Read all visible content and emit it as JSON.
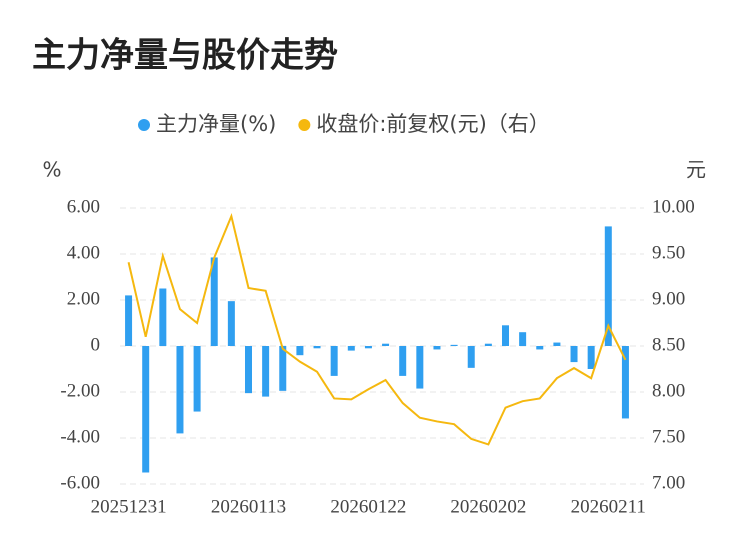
{
  "chart_data": {
    "type": "bar_line",
    "title": "主力净量与股价走势",
    "y_label": "%",
    "y2_label": "元",
    "categories": [
      "20251231",
      null,
      null,
      null,
      null,
      null,
      null,
      "20260113",
      null,
      null,
      null,
      null,
      null,
      null,
      "20260122",
      null,
      null,
      null,
      null,
      null,
      null,
      "20260202",
      null,
      null,
      null,
      null,
      null,
      null,
      "20260211",
      null
    ],
    "series": [
      {
        "name": "主力净量(%)",
        "type": "bar",
        "color": "#2f9ff0",
        "values": [
          2.2,
          -5.5,
          2.5,
          -3.8,
          -2.85,
          3.85,
          1.95,
          -2.05,
          -2.2,
          -1.95,
          -0.4,
          -0.1,
          -1.3,
          -0.2,
          -0.1,
          0.1,
          -1.3,
          -1.85,
          -0.15,
          0.05,
          -0.95,
          0.1,
          0.9,
          0.6,
          -0.15,
          0.15,
          -0.7,
          -1.0,
          5.2,
          -3.15
        ]
      },
      {
        "name": "收盘价:前复权(元)（右）",
        "type": "line",
        "axis": "y2",
        "color": "#f5b80f",
        "values": [
          9.41,
          8.6,
          9.48,
          8.9,
          8.75,
          9.46,
          9.91,
          9.13,
          9.1,
          8.47,
          8.33,
          8.22,
          7.93,
          7.92,
          8.03,
          8.13,
          7.88,
          7.72,
          7.68,
          7.65,
          7.49,
          7.43,
          7.83,
          7.9,
          7.93,
          8.15,
          8.26,
          8.15,
          8.72,
          8.35
        ]
      }
    ],
    "ylim": [
      -6,
      6
    ],
    "yticks": [
      {
        "value": -6,
        "label": "-6.00"
      },
      {
        "value": -4,
        "label": "-4.00"
      },
      {
        "value": -2,
        "label": "-2.00"
      },
      0,
      {
        "value": 2,
        "label": "2.00"
      },
      {
        "value": 4,
        "label": "4.00"
      },
      {
        "value": 6,
        "label": "6.00"
      }
    ],
    "y2lim": [
      7,
      10
    ],
    "y2ticks": [
      {
        "value": 7,
        "label": "7.00"
      },
      {
        "value": 7.5,
        "label": "7.50"
      },
      {
        "value": 8,
        "label": "8.00"
      },
      {
        "value": 8.5,
        "label": "8.50"
      },
      {
        "value": 9,
        "label": "9.00"
      },
      {
        "value": 9.5,
        "label": "9.50"
      },
      {
        "value": 10,
        "label": "10.00"
      }
    ],
    "grid": true
  }
}
